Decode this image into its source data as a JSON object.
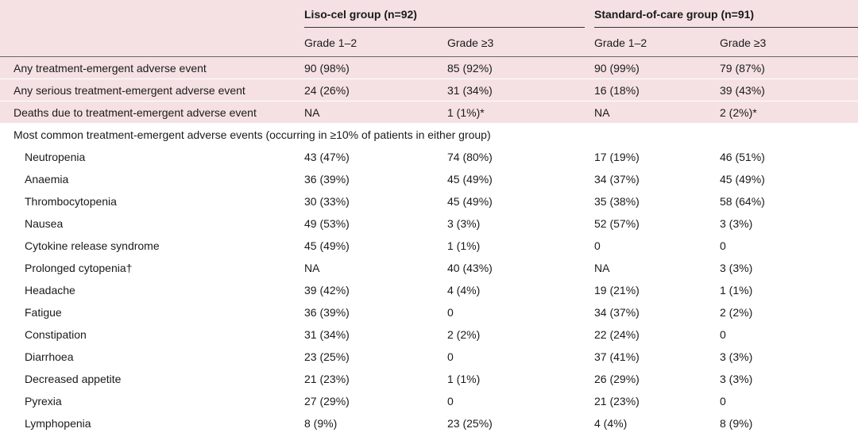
{
  "header": {
    "liso_group": "Liso-cel group (n=92)",
    "soc_group": "Standard-of-care group (n=91)",
    "grade12": "Grade 1–2",
    "grade3": "Grade ≥3"
  },
  "summary_rows": [
    {
      "label": "Any treatment-emergent adverse event",
      "l12": "90 (98%)",
      "l3": "85 (92%)",
      "s12": "90 (99%)",
      "s3": "79 (87%)"
    },
    {
      "label": "Any serious treatment-emergent adverse event",
      "l12": "24 (26%)",
      "l3": "31 (34%)",
      "s12": "16 (18%)",
      "s3": "39 (43%)"
    },
    {
      "label": "Deaths due to treatment-emergent adverse event",
      "l12": "NA",
      "l3": "1 (1%)*",
      "s12": "NA",
      "s3": "2 (2%)*"
    }
  ],
  "section_label": "Most common treatment-emergent adverse events (occurring in ≥10% of patients in either group)",
  "ae_rows": [
    {
      "label": "Neutropenia",
      "l12": "43 (47%)",
      "l3": "74 (80%)",
      "s12": "17 (19%)",
      "s3": "46 (51%)"
    },
    {
      "label": "Anaemia",
      "l12": "36 (39%)",
      "l3": "45 (49%)",
      "s12": "34 (37%)",
      "s3": "45 (49%)"
    },
    {
      "label": "Thrombocytopenia",
      "l12": "30 (33%)",
      "l3": "45 (49%)",
      "s12": "35 (38%)",
      "s3": "58 (64%)"
    },
    {
      "label": "Nausea",
      "l12": "49 (53%)",
      "l3": "3 (3%)",
      "s12": "52 (57%)",
      "s3": "3 (3%)"
    },
    {
      "label": "Cytokine release syndrome",
      "l12": "45 (49%)",
      "l3": "1 (1%)",
      "s12": "0",
      "s3": "0"
    },
    {
      "label": "Prolonged cytopenia†",
      "l12": "NA",
      "l3": "40 (43%)",
      "s12": "NA",
      "s3": "3 (3%)"
    },
    {
      "label": "Headache",
      "l12": "39 (42%)",
      "l3": "4 (4%)",
      "s12": "19 (21%)",
      "s3": "1 (1%)"
    },
    {
      "label": "Fatigue",
      "l12": "36 (39%)",
      "l3": "0",
      "s12": "34 (37%)",
      "s3": "2 (2%)"
    },
    {
      "label": "Constipation",
      "l12": "31 (34%)",
      "l3": "2 (2%)",
      "s12": "22 (24%)",
      "s3": "0"
    },
    {
      "label": "Diarrhoea",
      "l12": "23 (25%)",
      "l3": "0",
      "s12": "37 (41%)",
      "s3": "3 (3%)"
    },
    {
      "label": "Decreased appetite",
      "l12": "21 (23%)",
      "l3": "1 (1%)",
      "s12": "26 (29%)",
      "s3": "3 (3%)"
    },
    {
      "label": "Pyrexia",
      "l12": "27 (29%)",
      "l3": "0",
      "s12": "21 (23%)",
      "s3": "0"
    },
    {
      "label": "Lymphopenia",
      "l12": "8 (9%)",
      "l3": "23 (25%)",
      "s12": "4 (4%)",
      "s3": "8 (9%)"
    }
  ]
}
